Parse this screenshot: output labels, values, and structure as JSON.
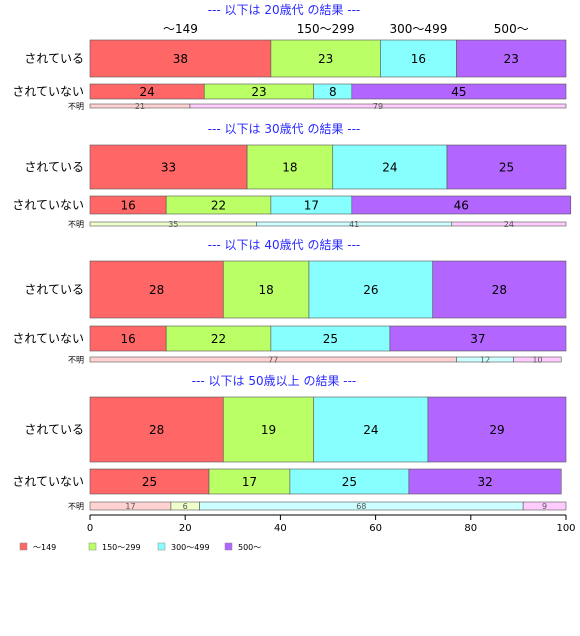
{
  "chart_data": {
    "type": "bar",
    "stacked": true,
    "orientation": "horizontal",
    "percent_stacked": true,
    "categories": [
      "〜149",
      "150〜299",
      "300〜499",
      "500〜"
    ],
    "column_headers": [
      "〜149",
      "150〜299",
      "300〜499",
      "500〜"
    ],
    "colors": [
      "#ff6666",
      "#bbff66",
      "#88ffff",
      "#b266ff"
    ],
    "light_colors": [
      "#ffd2d2",
      "#eeffcc",
      "#ccffff",
      "#ffccff"
    ],
    "xlim": [
      0,
      100
    ],
    "xticks": [
      0,
      20,
      40,
      60,
      80,
      100
    ],
    "legend": {
      "position": "bottom-left",
      "entries": [
        "〜149",
        "150〜299",
        "300〜499",
        "500〜"
      ]
    },
    "groups": [
      {
        "title": "--- 以下は 20歳代 の結果 ---",
        "rows": [
          {
            "label": "されている",
            "values": [
              38,
              23,
              16,
              23
            ]
          },
          {
            "label": "されていない",
            "values": [
              24,
              23,
              8,
              45
            ]
          },
          {
            "label": "不明",
            "values": [
              21,
              0,
              0,
              79
            ],
            "shown_labels": [
              "21",
              "",
              "",
              "79"
            ]
          }
        ]
      },
      {
        "title": "--- 以下は 30歳代 の結果 ---",
        "rows": [
          {
            "label": "されている",
            "values": [
              33,
              18,
              24,
              25
            ]
          },
          {
            "label": "されていない",
            "values": [
              16,
              22,
              17,
              46
            ]
          },
          {
            "label": "不明",
            "values": [
              0,
              35,
              41,
              24
            ],
            "shown_labels": [
              "",
              "35",
              "41",
              "24"
            ]
          }
        ]
      },
      {
        "title": "--- 以下は 40歳代 の結果 ---",
        "rows": [
          {
            "label": "されている",
            "values": [
              28,
              18,
              26,
              28
            ]
          },
          {
            "label": "されていない",
            "values": [
              16,
              22,
              25,
              37
            ]
          },
          {
            "label": "不明",
            "values": [
              77,
              0,
              12,
              10
            ],
            "shown_labels": [
              "77",
              "",
              "12",
              "10"
            ]
          }
        ]
      },
      {
        "title": "--- 以下は 50歳以上 の結果 ---",
        "rows": [
          {
            "label": "されている",
            "values": [
              28,
              19,
              24,
              29
            ]
          },
          {
            "label": "されていない",
            "values": [
              25,
              17,
              25,
              32
            ]
          },
          {
            "label": "不明",
            "values": [
              17,
              6,
              68,
              9
            ],
            "shown_labels": [
              "17",
              "6",
              "68",
              "9"
            ]
          }
        ]
      }
    ]
  }
}
